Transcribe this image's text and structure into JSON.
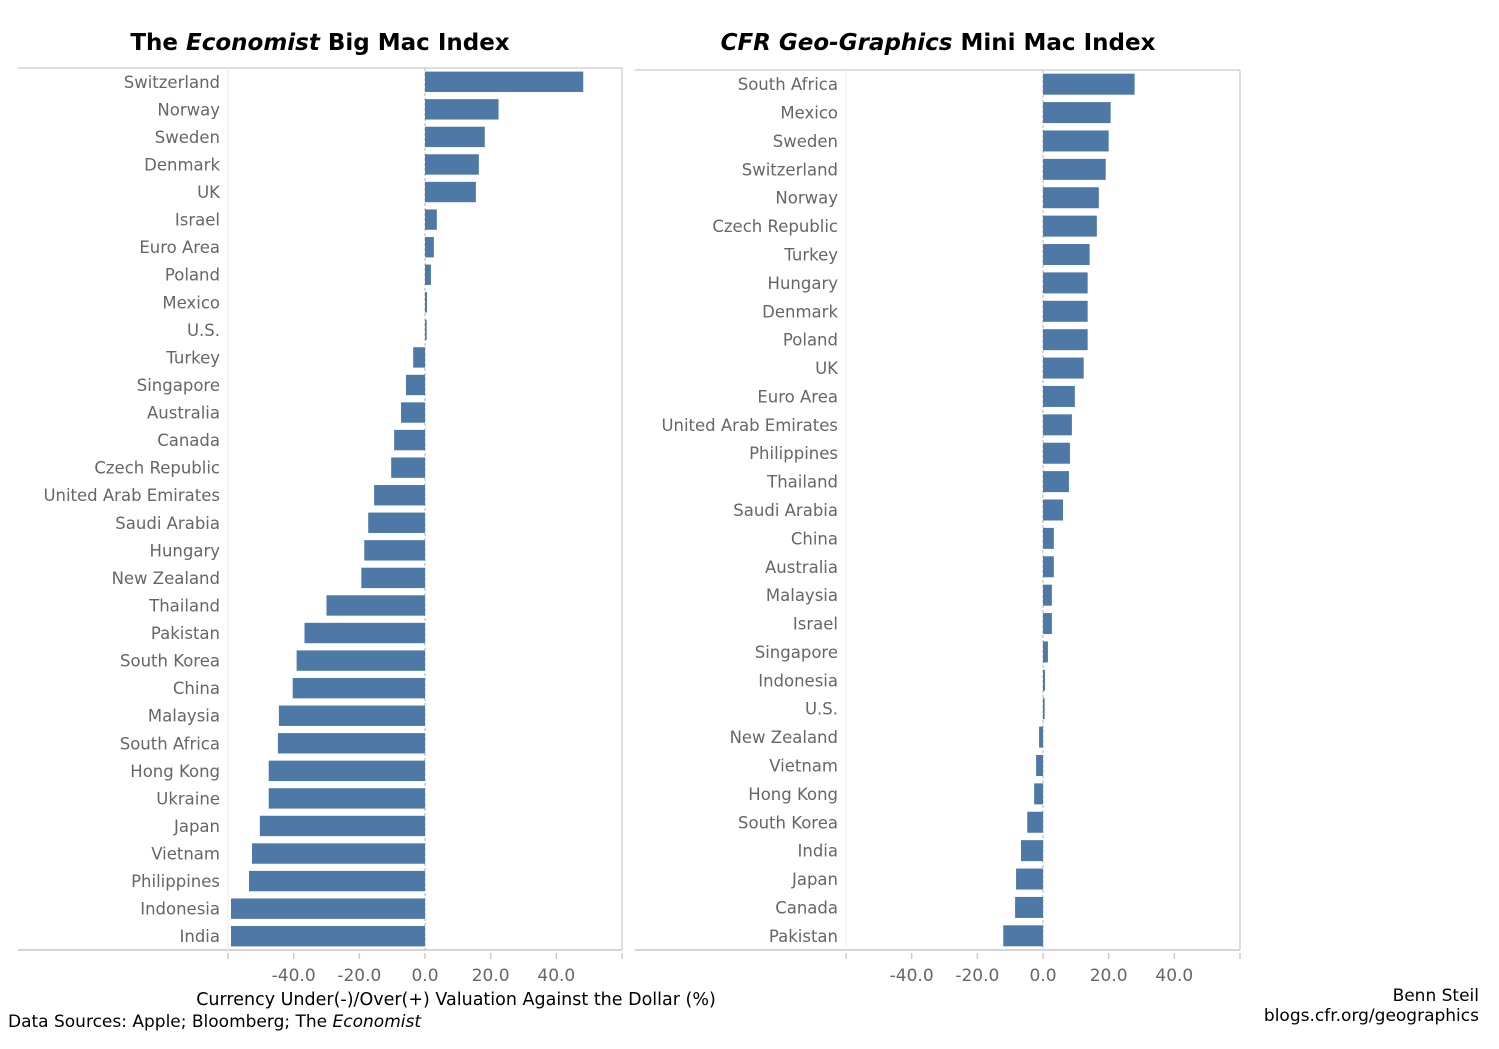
{
  "chart_data": [
    {
      "type": "bar",
      "orientation": "horizontal",
      "title": "The Economist Big Mac Index",
      "title_parts": [
        "The ",
        "Economist",
        " Big Mac Index"
      ],
      "categories": [
        "Switzerland",
        "Norway",
        "Sweden",
        "Denmark",
        "UK",
        "Israel",
        "Euro Area",
        "Poland",
        "Mexico",
        "U.S.",
        "Turkey",
        "Singapore",
        "Australia",
        "Canada",
        "Czech Republic",
        "United Arab Emirates",
        "Saudi Arabia",
        "Hungary",
        "New Zealand",
        "Thailand",
        "Pakistan",
        "South Korea",
        "China",
        "Malaysia",
        "South Africa",
        "Hong Kong",
        "Ukraine",
        "Japan",
        "Vietnam",
        "Philippines",
        "Indonesia",
        "India"
      ],
      "values": [
        48.2,
        22.4,
        18.2,
        16.4,
        15.5,
        3.6,
        2.7,
        1.8,
        0.6,
        0.5,
        -3.6,
        -5.8,
        -7.3,
        -9.4,
        -10.3,
        -15.5,
        -17.3,
        -18.5,
        -19.4,
        -30.0,
        -36.7,
        -39.1,
        -40.3,
        -44.5,
        -44.8,
        -47.6,
        -47.6,
        -50.3,
        -52.7,
        -53.6,
        -59.1,
        -59.1
      ],
      "xlim": [
        -60,
        60
      ],
      "xticks": [
        "-40.0",
        "-20.0",
        "0.0",
        "20.0",
        "40.0"
      ],
      "xtick_values": [
        -40,
        -20,
        0,
        20,
        40
      ],
      "bar_color": "#4e79a7",
      "grid": false
    },
    {
      "type": "bar",
      "orientation": "horizontal",
      "title": "CFR Geo-Graphics Mini Mac Index",
      "title_parts": [
        "CFR Geo-Graphics",
        " Mini Mac Index"
      ],
      "categories": [
        "South Africa",
        "Mexico",
        "Sweden",
        "Switzerland",
        "Norway",
        "Czech Republic",
        "Turkey",
        "Hungary",
        "Denmark",
        "Poland",
        "UK",
        "Euro Area",
        "United Arab Emirates",
        "Philippines",
        "Thailand",
        "Saudi Arabia",
        "China",
        "Australia",
        "Malaysia",
        "Israel",
        "Singapore",
        "Indonesia",
        "U.S.",
        "New Zealand",
        "Vietnam",
        "Hong Kong",
        "South Korea",
        "India",
        "Japan",
        "Canada",
        "Pakistan"
      ],
      "values": [
        27.9,
        20.6,
        20.0,
        19.1,
        17.0,
        16.4,
        14.2,
        13.6,
        13.6,
        13.6,
        12.4,
        9.7,
        8.8,
        8.2,
        7.9,
        6.1,
        3.3,
        3.3,
        2.7,
        2.7,
        1.5,
        0.6,
        0.5,
        -1.2,
        -2.1,
        -2.7,
        -4.8,
        -6.7,
        -8.2,
        -8.5,
        -12.1
      ],
      "xlim": [
        -60,
        60
      ],
      "xticks": [
        "-40.0",
        "-20.0",
        "0.0",
        "20.0",
        "40.0"
      ],
      "xtick_values": [
        -40,
        -20,
        0,
        20,
        40
      ],
      "bar_color": "#4e79a7",
      "grid": false
    }
  ],
  "xlabel": "Currency Under(-)/Over(+) Valuation Against the Dollar (%)",
  "footer": {
    "sources_prefix": "Data Sources: Apple; Bloomberg; The ",
    "sources_italic": "Economist",
    "author": "Benn Steil",
    "site": "blogs.cfr.org/geographics"
  }
}
